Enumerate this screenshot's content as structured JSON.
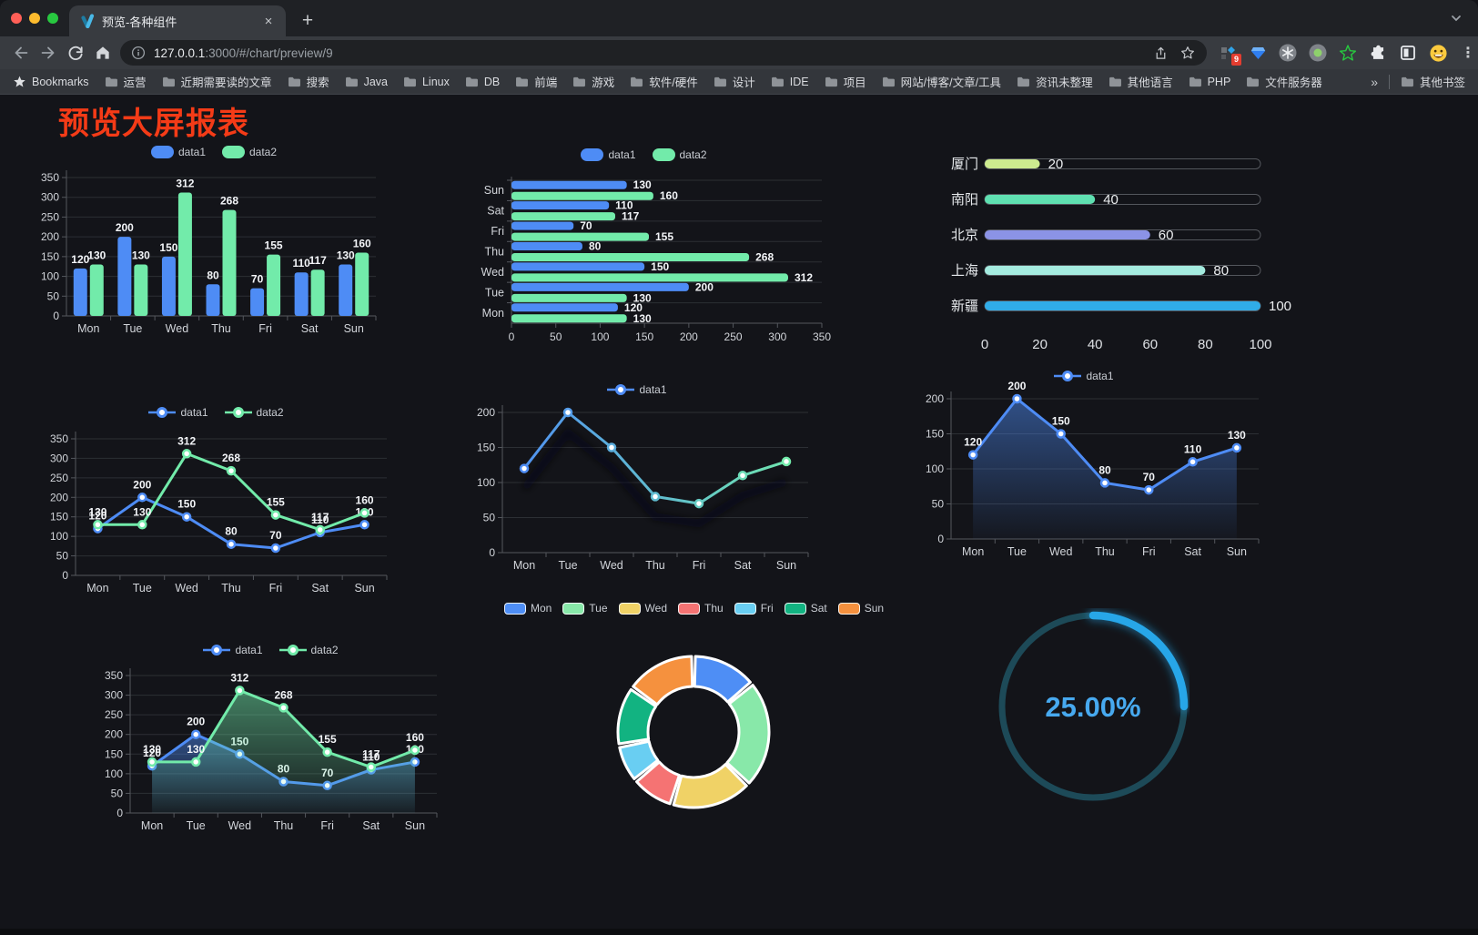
{
  "browser": {
    "traffic_lights": [
      "#ff5f57",
      "#febc2e",
      "#28c840"
    ],
    "tab": {
      "title": "预览-各种组件",
      "close_glyph": "×",
      "new_tab_glyph": "+"
    },
    "toolbar": {
      "url_host": "127.0.0.1",
      "url_rest": ":3000/#/chart/preview/9"
    },
    "extensions": {
      "badge_count": "9",
      "menu_glyph": "⋮"
    },
    "bookmarks": {
      "star_label": "Bookmarks",
      "folders": [
        "运营",
        "近期需要读的文章",
        "搜索",
        "Java",
        "Linux",
        "DB",
        "前端",
        "游戏",
        "软件/硬件",
        "设计",
        "IDE",
        "项目",
        "网站/博客/文章/工具",
        "资讯未整理",
        "其他语言",
        "PHP",
        "文件服务器"
      ],
      "overflow_glyph": "»",
      "other_label": "其他书签"
    }
  },
  "page": {
    "heading": "预览大屏报表",
    "heading_color": "#f43b17",
    "background": "#131419"
  },
  "chart_data": [
    {
      "name": "grouped-bar",
      "type": "bar",
      "legend": [
        "data1",
        "data2"
      ],
      "legend_marker": "pill",
      "categories": [
        "Mon",
        "Tue",
        "Wed",
        "Thu",
        "Fri",
        "Sat",
        "Sun"
      ],
      "series": [
        {
          "name": "data1",
          "color": "#4e8cf5",
          "values": [
            120,
            200,
            150,
            80,
            70,
            110,
            130
          ]
        },
        {
          "name": "data2",
          "color": "#72ebaa",
          "values": [
            130,
            130,
            312,
            268,
            155,
            117,
            160
          ]
        }
      ],
      "ylim": [
        0,
        350
      ],
      "yticks": [
        0,
        50,
        100,
        150,
        200,
        250,
        300,
        350
      ],
      "value_labels": true,
      "grid": true
    },
    {
      "name": "horizontal-bar",
      "type": "hbar",
      "legend": [
        "data1",
        "data2"
      ],
      "legend_marker": "pill",
      "categories": [
        "Mon",
        "Tue",
        "Wed",
        "Thu",
        "Fri",
        "Sat",
        "Sun"
      ],
      "categories_top_down": [
        "Sun",
        "Sat",
        "Fri",
        "Thu",
        "Wed",
        "Tue",
        "Mon"
      ],
      "series": [
        {
          "name": "data1",
          "color": "#4e8cf5",
          "values": [
            120,
            200,
            150,
            80,
            70,
            110,
            130
          ]
        },
        {
          "name": "data2",
          "color": "#72ebaa",
          "values": [
            130,
            130,
            312,
            268,
            155,
            117,
            160
          ]
        }
      ],
      "xlim": [
        0,
        350
      ],
      "xticks": [
        0,
        50,
        100,
        150,
        200,
        250,
        300,
        350
      ],
      "value_labels": true,
      "grid": true
    },
    {
      "name": "city-progress",
      "type": "progress",
      "max": 100,
      "xticks": [
        0,
        20,
        40,
        60,
        80,
        100
      ],
      "rows": [
        {
          "label": "厦门",
          "value": 20,
          "color": "#cdeb8f"
        },
        {
          "label": "南阳",
          "value": 40,
          "color": "#5fe0b1"
        },
        {
          "label": "北京",
          "value": 60,
          "color": "#8b93e6"
        },
        {
          "label": "上海",
          "value": 80,
          "color": "#a4ebdf"
        },
        {
          "label": "新疆",
          "value": 100,
          "color": "#30ace8"
        }
      ]
    },
    {
      "name": "line-two-series",
      "type": "line",
      "legend": [
        "data1",
        "data2"
      ],
      "legend_marker": "line-dot",
      "categories": [
        "Mon",
        "Tue",
        "Wed",
        "Thu",
        "Fri",
        "Sat",
        "Sun"
      ],
      "series": [
        {
          "name": "data1",
          "color": "#4e8cf5",
          "values": [
            120,
            200,
            150,
            80,
            70,
            110,
            130
          ]
        },
        {
          "name": "data2",
          "color": "#72ebaa",
          "values": [
            130,
            130,
            312,
            268,
            155,
            117,
            160
          ]
        }
      ],
      "ylim": [
        0,
        350
      ],
      "yticks": [
        0,
        50,
        100,
        150,
        200,
        250,
        300,
        350
      ],
      "value_labels": true,
      "area": false,
      "grid": true
    },
    {
      "name": "line-gradient",
      "type": "line",
      "legend": [
        "data1"
      ],
      "legend_marker": "line-dot",
      "categories": [
        "Mon",
        "Tue",
        "Wed",
        "Thu",
        "Fri",
        "Sat",
        "Sun"
      ],
      "series": [
        {
          "name": "data1",
          "color": "#4e8cf5",
          "gradient": [
            "#4e8cf5",
            "#72ebaa"
          ],
          "values": [
            120,
            200,
            150,
            80,
            70,
            110,
            130
          ]
        }
      ],
      "ylim": [
        0,
        200
      ],
      "yticks": [
        0,
        50,
        100,
        150,
        200
      ],
      "value_labels": false,
      "area": false,
      "shadow": true,
      "grid": true
    },
    {
      "name": "line-area",
      "type": "line",
      "legend": [
        "data1"
      ],
      "legend_marker": "line-dot",
      "categories": [
        "Mon",
        "Tue",
        "Wed",
        "Thu",
        "Fri",
        "Sat",
        "Sun"
      ],
      "series": [
        {
          "name": "data1",
          "color": "#4e8cf5",
          "values": [
            120,
            200,
            150,
            80,
            70,
            110,
            130
          ]
        }
      ],
      "ylim": [
        0,
        200
      ],
      "yticks": [
        0,
        50,
        100,
        150,
        200
      ],
      "value_labels": true,
      "area": true,
      "grid": true
    },
    {
      "name": "line-two-series-area",
      "type": "line",
      "legend": [
        "data1",
        "data2"
      ],
      "legend_marker": "line-dot",
      "categories": [
        "Mon",
        "Tue",
        "Wed",
        "Thu",
        "Fri",
        "Sat",
        "Sun"
      ],
      "series": [
        {
          "name": "data1",
          "color": "#4e8cf5",
          "values": [
            120,
            200,
            150,
            80,
            70,
            110,
            130
          ]
        },
        {
          "name": "data2",
          "color": "#72ebaa",
          "values": [
            130,
            130,
            312,
            268,
            155,
            117,
            160
          ]
        }
      ],
      "ylim": [
        0,
        350
      ],
      "yticks": [
        0,
        50,
        100,
        150,
        200,
        250,
        300,
        350
      ],
      "value_labels": true,
      "area": true,
      "grid": true
    },
    {
      "name": "weekday-donut",
      "type": "donut",
      "legend_marker": "pill-bordered",
      "categories": [
        "Mon",
        "Tue",
        "Wed",
        "Thu",
        "Fri",
        "Sat",
        "Sun"
      ],
      "values": [
        120,
        200,
        150,
        80,
        70,
        110,
        130
      ],
      "colors": [
        "#4e8ef5",
        "#88e8a9",
        "#f0d266",
        "#f57373",
        "#69cef2",
        "#12b381",
        "#f5913e"
      ]
    },
    {
      "name": "percent-gauge",
      "type": "gauge",
      "value": 25,
      "text": "25.00%",
      "color": "#27a6e8",
      "track_color": "#1d4a58",
      "text_color": "#47a9ef"
    }
  ]
}
